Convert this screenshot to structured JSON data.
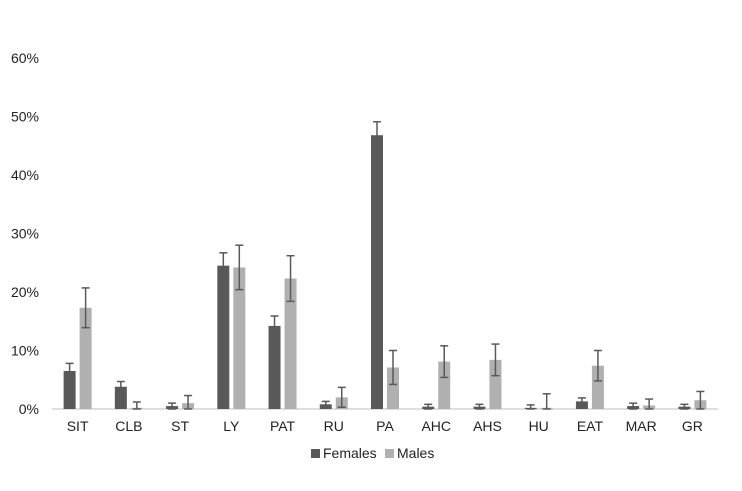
{
  "chart_data": {
    "type": "bar",
    "categories": [
      "SIT",
      "CLB",
      "ST",
      "LY",
      "PAT",
      "RU",
      "PA",
      "AHC",
      "AHS",
      "HU",
      "EAT",
      "MAR",
      "GR"
    ],
    "series": [
      {
        "name": "Females",
        "color": "#595959",
        "values": [
          6.5,
          3.8,
          0.5,
          24.5,
          14.2,
          0.8,
          46.8,
          0.4,
          0.4,
          0.2,
          1.3,
          0.5,
          0.4
        ],
        "error": [
          1.3,
          0.9,
          0.5,
          2.2,
          1.7,
          0.5,
          2.3,
          0.4,
          0.4,
          0.5,
          0.6,
          0.5,
          0.4
        ]
      },
      {
        "name": "Males",
        "color": "#b0b0b0",
        "values": [
          17.3,
          0.2,
          1.0,
          24.2,
          22.3,
          2.0,
          7.1,
          8.1,
          8.4,
          0.2,
          7.4,
          0.6,
          1.5
        ],
        "error": [
          3.4,
          1.0,
          1.3,
          3.8,
          3.9,
          1.7,
          2.9,
          2.7,
          2.7,
          2.4,
          2.6,
          1.1,
          1.5
        ]
      }
    ],
    "ylim": [
      0,
      60
    ],
    "yticks": [
      0,
      10,
      20,
      30,
      40,
      50,
      60
    ],
    "ytick_labels": [
      "0%",
      "10%",
      "20%",
      "30%",
      "40%",
      "50%",
      "60%"
    ],
    "grid": false,
    "legend_position": "bottom-center"
  }
}
